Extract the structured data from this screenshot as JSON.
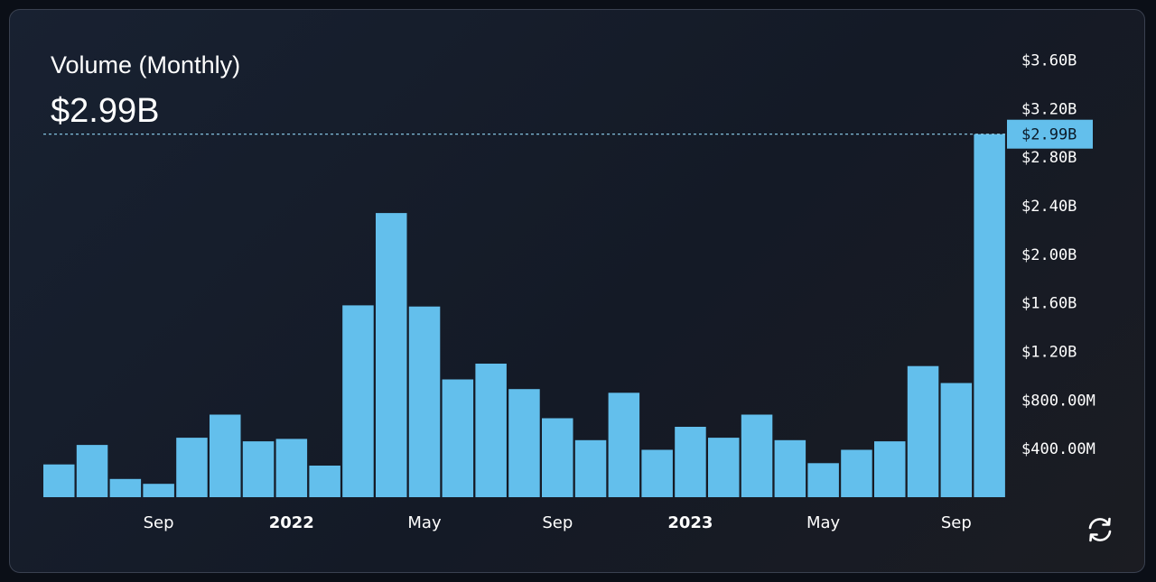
{
  "header": {
    "title": "Volume (Monthly)",
    "current_value": "$2.99B"
  },
  "colors": {
    "bar": "#63bfec",
    "last_label_bg": "#63bfec",
    "dashed_line": "#8fd3f2"
  },
  "icons": {
    "refresh": "refresh-icon"
  },
  "chart_data": {
    "type": "bar",
    "unit": "USD",
    "values": [
      270000000,
      430000000,
      150000000,
      110000000,
      490000000,
      680000000,
      460000000,
      480000000,
      260000000,
      1580000000,
      2340000000,
      1570000000,
      970000000,
      1100000000,
      890000000,
      650000000,
      470000000,
      860000000,
      390000000,
      580000000,
      490000000,
      680000000,
      470000000,
      280000000,
      390000000,
      460000000,
      1080000000,
      940000000,
      2990000000
    ],
    "x_tick_labels": [
      {
        "bar_index": 3,
        "label": "Sep",
        "is_year": false
      },
      {
        "bar_index": 7,
        "label": "2022",
        "is_year": true
      },
      {
        "bar_index": 11,
        "label": "May",
        "is_year": false
      },
      {
        "bar_index": 15,
        "label": "Sep",
        "is_year": false
      },
      {
        "bar_index": 19,
        "label": "2023",
        "is_year": true
      },
      {
        "bar_index": 23,
        "label": "May",
        "is_year": false
      },
      {
        "bar_index": 27,
        "label": "Sep",
        "is_year": false
      }
    ],
    "y_ticks": [
      {
        "value": 400000000,
        "label": "$400.00M"
      },
      {
        "value": 800000000,
        "label": "$800.00M"
      },
      {
        "value": 1200000000,
        "label": "$1.20B"
      },
      {
        "value": 1600000000,
        "label": "$1.60B"
      },
      {
        "value": 2000000000,
        "label": "$2.00B"
      },
      {
        "value": 2400000000,
        "label": "$2.40B"
      },
      {
        "value": 2800000000,
        "label": "$2.80B"
      },
      {
        "value": 3200000000,
        "label": "$3.20B"
      },
      {
        "value": 3600000000,
        "label": "$3.60B"
      }
    ],
    "ylim": [
      0,
      3600000000
    ],
    "y_axis_position": "right",
    "grid": false,
    "last_value_label": "$2.99B"
  }
}
